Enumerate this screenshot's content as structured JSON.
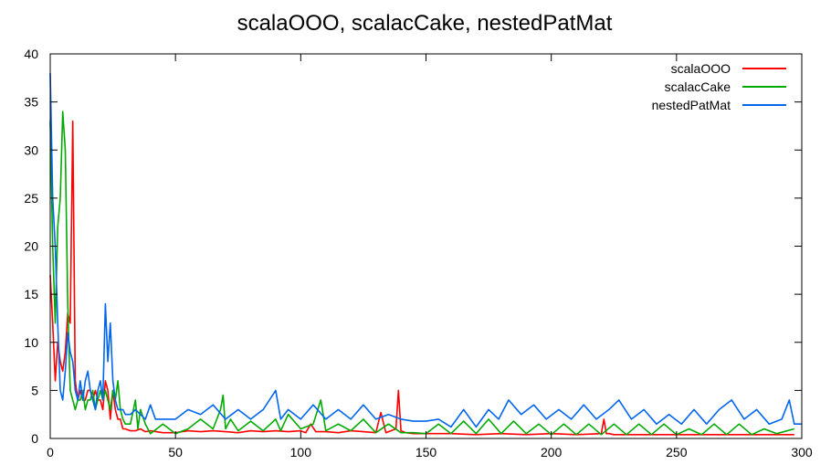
{
  "chart_data": {
    "type": "line",
    "title": "scalaOOO, scalacCake, nestedPatMat",
    "xlabel": "",
    "ylabel": "",
    "xlim": [
      0,
      300
    ],
    "ylim": [
      0,
      40
    ],
    "xticks": [
      0,
      50,
      100,
      150,
      200,
      250,
      300
    ],
    "yticks": [
      0,
      5,
      10,
      15,
      20,
      25,
      30,
      35,
      40
    ],
    "grid": false,
    "legend_position": "top-right",
    "series": [
      {
        "name": "scalaOOO",
        "color": "#ff0000",
        "x": [
          0,
          1,
          2,
          3,
          4,
          5,
          6,
          7,
          8,
          9,
          10,
          11,
          12,
          13,
          14,
          15,
          16,
          17,
          18,
          19,
          20,
          21,
          22,
          23,
          24,
          25,
          26,
          27,
          28,
          29,
          30,
          32,
          34,
          36,
          38,
          40,
          45,
          50,
          55,
          60,
          65,
          70,
          75,
          80,
          85,
          90,
          95,
          100,
          102,
          104,
          106,
          110,
          115,
          120,
          125,
          130,
          132,
          134,
          136,
          138,
          139,
          140,
          142,
          145,
          150,
          160,
          170,
          180,
          190,
          200,
          210,
          220,
          221,
          222,
          223,
          225,
          230,
          240,
          250,
          260,
          270,
          280,
          290,
          297
        ],
        "y": [
          17,
          12,
          6,
          10,
          8,
          7,
          9,
          13,
          12,
          33,
          6,
          4,
          5,
          4,
          4,
          5,
          5,
          4,
          5,
          4,
          4,
          3,
          6,
          5,
          2,
          5,
          3,
          2,
          2,
          1,
          1,
          0.8,
          0.8,
          1,
          0.7,
          0.8,
          0.6,
          0.6,
          0.8,
          0.7,
          0.8,
          0.7,
          0.6,
          0.8,
          0.7,
          0.8,
          0.7,
          0.8,
          0.6,
          1.5,
          0.7,
          0.7,
          0.6,
          0.8,
          0.7,
          0.6,
          2.7,
          0.6,
          0.8,
          1,
          5,
          0.8,
          0.6,
          0.5,
          0.5,
          0.5,
          0.4,
          0.5,
          0.4,
          0.5,
          0.4,
          0.5,
          2,
          0.5,
          0.5,
          0.4,
          0.4,
          0.4,
          0.4,
          0.4,
          0.4,
          0.4,
          0.4,
          0.4
        ]
      },
      {
        "name": "scalacCake",
        "color": "#00aa00",
        "x": [
          0,
          1,
          2,
          3,
          4,
          5,
          6,
          7,
          8,
          9,
          10,
          11,
          12,
          13,
          14,
          15,
          16,
          17,
          18,
          19,
          20,
          21,
          22,
          23,
          24,
          25,
          26,
          27,
          28,
          29,
          30,
          32,
          34,
          35,
          36,
          38,
          40,
          45,
          50,
          55,
          60,
          65,
          68,
          69,
          70,
          72,
          75,
          80,
          85,
          90,
          92,
          95,
          100,
          105,
          108,
          110,
          115,
          120,
          125,
          130,
          135,
          140,
          145,
          150,
          155,
          160,
          165,
          170,
          175,
          180,
          185,
          190,
          195,
          200,
          205,
          210,
          215,
          220,
          225,
          230,
          235,
          240,
          245,
          250,
          255,
          260,
          265,
          270,
          275,
          280,
          285,
          290,
          297
        ],
        "y": [
          33,
          20,
          12,
          22,
          25,
          34,
          30,
          14,
          5,
          4,
          3,
          4,
          4,
          5,
          3,
          4,
          4,
          5,
          3,
          4,
          5,
          4,
          5,
          4,
          3,
          5,
          4,
          6,
          3,
          2,
          1.5,
          1.5,
          4,
          1,
          3,
          1.5,
          0.5,
          1.5,
          0.5,
          1,
          2,
          1,
          3,
          4.5,
          1,
          2,
          0.8,
          1.8,
          0.8,
          2,
          0.8,
          2.5,
          1,
          1.5,
          4,
          0.8,
          1.5,
          0.8,
          2,
          0.6,
          1.5,
          0.6,
          0.6,
          0.5,
          1.5,
          0.5,
          1.8,
          0.5,
          2,
          0.5,
          1.8,
          0.5,
          1.5,
          0.4,
          1.5,
          0.4,
          1.5,
          0.4,
          1.5,
          0.4,
          1.5,
          0.4,
          1.5,
          0.4,
          1,
          0.4,
          1.5,
          0.4,
          1.5,
          0.4,
          1,
          0.5,
          1
        ]
      },
      {
        "name": "nestedPatMat",
        "color": "#0066ee",
        "x": [
          0,
          1,
          2,
          3,
          4,
          5,
          6,
          7,
          8,
          9,
          10,
          11,
          12,
          13,
          14,
          15,
          16,
          17,
          18,
          19,
          20,
          21,
          22,
          23,
          24,
          25,
          26,
          27,
          28,
          29,
          30,
          32,
          34,
          36,
          38,
          40,
          42,
          44,
          46,
          48,
          50,
          55,
          60,
          65,
          70,
          75,
          80,
          85,
          90,
          92,
          95,
          100,
          105,
          110,
          115,
          120,
          125,
          130,
          135,
          140,
          145,
          150,
          155,
          160,
          165,
          170,
          175,
          179,
          183,
          188,
          193,
          198,
          203,
          208,
          213,
          218,
          223,
          227,
          232,
          237,
          242,
          247,
          252,
          257,
          262,
          267,
          272,
          277,
          282,
          287,
          292,
          295,
          297,
          300
        ],
        "y": [
          38,
          25,
          20,
          12,
          5,
          4,
          7,
          11,
          9,
          8,
          5,
          4,
          6,
          4,
          6,
          7,
          5,
          4,
          3,
          5,
          6,
          4,
          14,
          8,
          12,
          6,
          4,
          3,
          3,
          3,
          2.5,
          2.5,
          3,
          2.5,
          2,
          3.5,
          2,
          2,
          2,
          2,
          2,
          3,
          2.5,
          3.5,
          2,
          3,
          2,
          3,
          5,
          2,
          3,
          2,
          3.5,
          2,
          3,
          2,
          3.5,
          2,
          2.5,
          2,
          1.8,
          1.8,
          2,
          1.2,
          3,
          1.2,
          3,
          2,
          4,
          2.5,
          3.5,
          2,
          3,
          2,
          3.5,
          2,
          3,
          4,
          2,
          3,
          1.5,
          2.5,
          1.5,
          3,
          1.5,
          3,
          4,
          2,
          3,
          1.5,
          2,
          4,
          1.5,
          1.5
        ]
      }
    ]
  }
}
